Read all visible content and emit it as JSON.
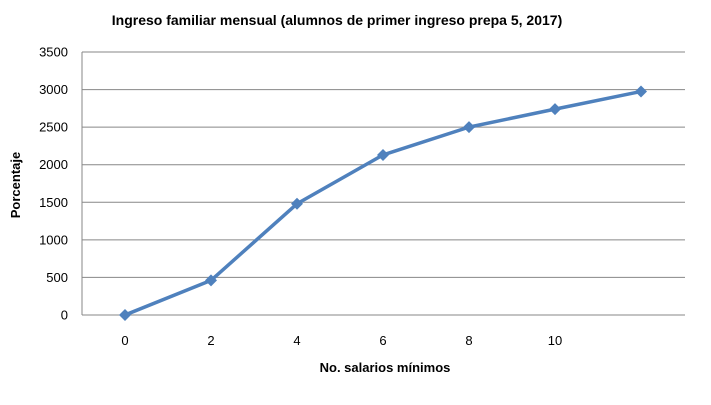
{
  "chart_data": {
    "type": "line",
    "title": "Ingreso familiar mensual (alumnos de primer ingreso prepa 5, 2017)",
    "xlabel": "No. salarios  mínimos",
    "ylabel": "Porcentaje",
    "x_ticks": [
      "0",
      "2",
      "4",
      "6",
      "8",
      "10"
    ],
    "y_ticks": [
      "0",
      "500",
      "1000",
      "1500",
      "2000",
      "2500",
      "3000",
      "3500"
    ],
    "ylim": [
      0,
      3500
    ],
    "grid": "horizontal",
    "legend": "none",
    "series": [
      {
        "color": "#4F81BD",
        "marker": "diamond",
        "x": [
          0,
          2,
          4,
          6,
          8,
          10,
          12
        ],
        "y": [
          0,
          460,
          1480,
          2130,
          2500,
          2740,
          2975
        ]
      }
    ]
  }
}
